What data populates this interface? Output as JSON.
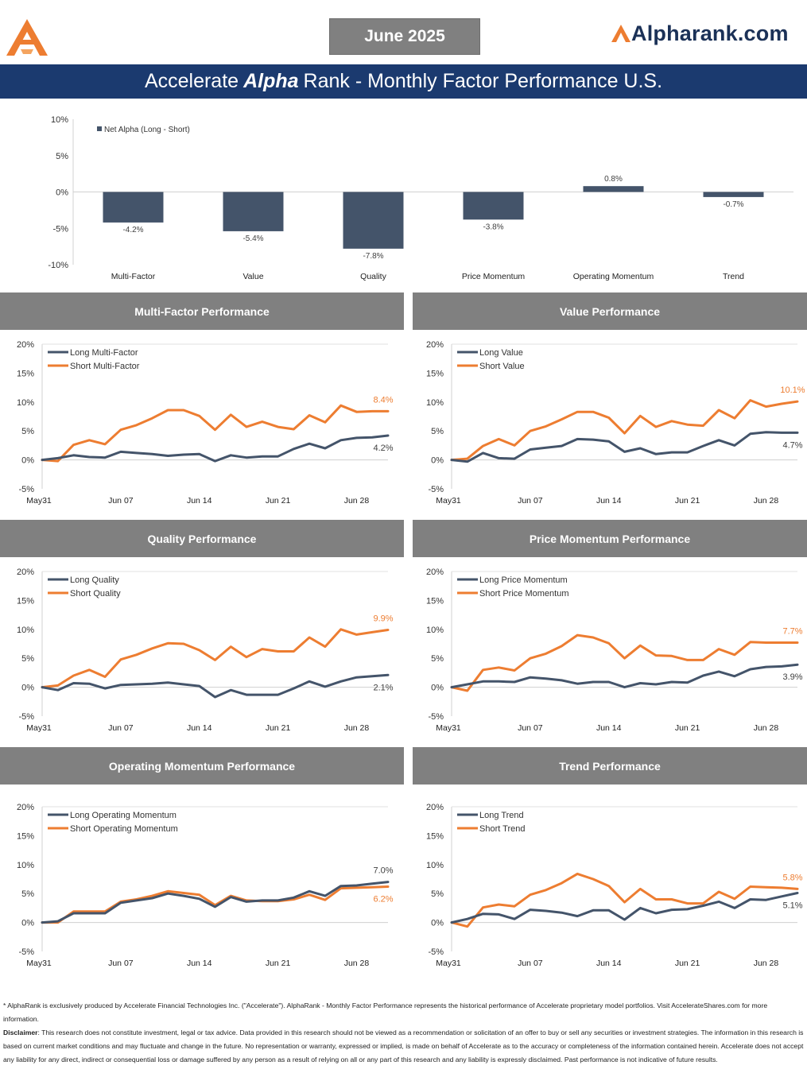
{
  "header": {
    "date": "June 2025",
    "brand": "Alpharank.com",
    "title_pre": "Accelerate",
    "title_alpha": "Alpha",
    "title_post": "Rank - Monthly Factor Performance U.S."
  },
  "colors": {
    "navy": "#44546a",
    "orange": "#ed7d31",
    "panel_gray": "#808080",
    "title_blue": "#1b3a6f"
  },
  "net_alpha": {
    "chart_data": {
      "type": "bar",
      "categories": [
        "Multi-Factor",
        "Value",
        "Quality",
        "Price Momentum",
        "Operating Momentum",
        "Trend"
      ],
      "series": [
        {
          "name": "Net Alpha (Long - Short)",
          "values": [
            -4.2,
            -5.4,
            -7.8,
            -3.8,
            0.8,
            -0.7
          ]
        }
      ],
      "value_labels": [
        "-4.2%",
        "-5.4%",
        "-7.8%",
        "-3.8%",
        "0.8%",
        "-0.7%"
      ],
      "yticks": [
        "10%",
        "5%",
        "0%",
        "-5%",
        "-10%"
      ],
      "ylim": [
        -10,
        10
      ],
      "legend": "top-left"
    }
  },
  "panels": [
    {
      "title": "Multi-Factor Performance",
      "chart_data": {
        "type": "line",
        "xticks": [
          "May31",
          "Jun 07",
          "Jun 14",
          "Jun 21",
          "Jun 28"
        ],
        "yticks": [
          "20%",
          "15%",
          "10%",
          "5%",
          "0%",
          "-5%"
        ],
        "ylim": [
          -5,
          20
        ],
        "series": [
          {
            "name": "Long Multi-Factor",
            "color": "#44546a",
            "end_label": "4.2%",
            "values": [
              0,
              0.3,
              0.8,
              0.5,
              0.4,
              1.4,
              1.2,
              1.0,
              0.7,
              0.9,
              1.0,
              -0.2,
              0.8,
              0.4,
              0.6,
              0.6,
              1.9,
              2.8,
              2.0,
              3.4,
              3.8,
              3.9,
              4.2
            ]
          },
          {
            "name": "Short Multi-Factor",
            "color": "#ed7d31",
            "end_label": "8.4%",
            "values": [
              0,
              -0.2,
              2.6,
              3.4,
              2.7,
              5.2,
              6.0,
              7.2,
              8.6,
              8.6,
              7.6,
              5.2,
              7.8,
              5.7,
              6.6,
              5.7,
              5.3,
              7.7,
              6.5,
              9.4,
              8.3,
              8.4,
              8.4
            ]
          }
        ]
      }
    },
    {
      "title": "Value Performance",
      "chart_data": {
        "type": "line",
        "xticks": [
          "May31",
          "Jun 07",
          "Jun 14",
          "Jun 21",
          "Jun 28"
        ],
        "yticks": [
          "20%",
          "15%",
          "10%",
          "5%",
          "0%",
          "-5%"
        ],
        "ylim": [
          -5,
          20
        ],
        "series": [
          {
            "name": "Long Value",
            "color": "#44546a",
            "end_label": "4.7%",
            "values": [
              0,
              -0.3,
              1.2,
              0.3,
              0.2,
              1.8,
              2.1,
              2.4,
              3.6,
              3.5,
              3.2,
              1.4,
              2.0,
              1.0,
              1.3,
              1.3,
              2.4,
              3.4,
              2.5,
              4.5,
              4.8,
              4.7,
              4.7
            ]
          },
          {
            "name": "Short Value",
            "color": "#ed7d31",
            "end_label": "10.1%",
            "values": [
              0,
              0.2,
              2.4,
              3.6,
              2.5,
              5.0,
              5.8,
              7.0,
              8.3,
              8.3,
              7.3,
              4.6,
              7.6,
              5.7,
              6.7,
              6.1,
              5.9,
              8.6,
              7.2,
              10.3,
              9.2,
              9.7,
              10.1
            ]
          }
        ]
      }
    },
    {
      "title": "Quality Performance",
      "chart_data": {
        "type": "line",
        "xticks": [
          "May31",
          "Jun 07",
          "Jun 14",
          "Jun 21",
          "Jun 28"
        ],
        "yticks": [
          "20%",
          "15%",
          "10%",
          "5%",
          "0%",
          "-5%"
        ],
        "ylim": [
          -5,
          20
        ],
        "series": [
          {
            "name": "Long Quality",
            "color": "#44546a",
            "end_label": "2.1%",
            "values": [
              0,
              -0.5,
              0.7,
              0.6,
              -0.2,
              0.4,
              0.5,
              0.6,
              0.8,
              0.5,
              0.2,
              -1.7,
              -0.5,
              -1.3,
              -1.3,
              -1.3,
              -0.2,
              1.0,
              0.1,
              1.0,
              1.7,
              1.9,
              2.1
            ]
          },
          {
            "name": "Short Quality",
            "color": "#ed7d31",
            "end_label": "9.9%",
            "values": [
              0,
              0.3,
              2.0,
              3.0,
              1.8,
              4.8,
              5.6,
              6.7,
              7.6,
              7.5,
              6.4,
              4.7,
              7.0,
              5.2,
              6.6,
              6.2,
              6.2,
              8.6,
              7.0,
              10.0,
              9.1,
              9.5,
              9.9
            ]
          }
        ]
      }
    },
    {
      "title": "Price Momentum Performance",
      "chart_data": {
        "type": "line",
        "xticks": [
          "May31",
          "Jun 07",
          "Jun 14",
          "Jun 21",
          "Jun 28"
        ],
        "yticks": [
          "20%",
          "15%",
          "10%",
          "5%",
          "0%",
          "-5%"
        ],
        "ylim": [
          -5,
          20
        ],
        "series": [
          {
            "name": "Long Price Momentum",
            "color": "#44546a",
            "end_label": "3.9%",
            "values": [
              0,
              0.5,
              1.0,
              1.0,
              0.9,
              1.7,
              1.5,
              1.2,
              0.6,
              0.9,
              0.9,
              0.0,
              0.7,
              0.5,
              0.9,
              0.8,
              2.0,
              2.7,
              1.9,
              3.1,
              3.5,
              3.6,
              3.9
            ]
          },
          {
            "name": "Short Price Momentum",
            "color": "#ed7d31",
            "end_label": "7.7%",
            "values": [
              0,
              -0.6,
              3.0,
              3.4,
              2.9,
              5.0,
              5.8,
              7.1,
              9.0,
              8.6,
              7.6,
              5.0,
              7.2,
              5.5,
              5.4,
              4.7,
              4.7,
              6.6,
              5.6,
              7.8,
              7.7,
              7.7,
              7.7
            ]
          }
        ]
      }
    },
    {
      "title": "Operating Momentum Performance",
      "chart_data": {
        "type": "line",
        "xticks": [
          "May31",
          "Jun 07",
          "Jun 14",
          "Jun 21",
          "Jun 28"
        ],
        "yticks": [
          "20%",
          "15%",
          "10%",
          "5%",
          "0%",
          "-5%"
        ],
        "ylim": [
          -5,
          20
        ],
        "series": [
          {
            "name": "Long Operating Momentum",
            "color": "#44546a",
            "end_label": "7.0%",
            "values": [
              0,
              0.2,
              1.6,
              1.6,
              1.6,
              3.4,
              3.8,
              4.2,
              5.0,
              4.6,
              4.1,
              2.7,
              4.4,
              3.6,
              3.8,
              3.8,
              4.3,
              5.4,
              4.6,
              6.3,
              6.4,
              6.7,
              7.0
            ]
          },
          {
            "name": "Short Operating Momentum",
            "color": "#ed7d31",
            "end_label": "6.2%",
            "values": [
              0,
              0.0,
              1.9,
              1.9,
              1.9,
              3.6,
              4.0,
              4.6,
              5.4,
              5.1,
              4.8,
              3.0,
              4.6,
              3.8,
              3.7,
              3.7,
              4.0,
              4.8,
              3.9,
              5.9,
              6.0,
              6.1,
              6.2
            ]
          }
        ]
      }
    },
    {
      "title": "Trend Performance",
      "chart_data": {
        "type": "line",
        "xticks": [
          "May31",
          "Jun 07",
          "Jun 14",
          "Jun 21",
          "Jun 28"
        ],
        "yticks": [
          "20%",
          "15%",
          "10%",
          "5%",
          "0%",
          "-5%"
        ],
        "ylim": [
          -5,
          20
        ],
        "series": [
          {
            "name": "Long Trend",
            "color": "#44546a",
            "end_label": "5.1%",
            "values": [
              0,
              0.6,
              1.5,
              1.4,
              0.6,
              2.2,
              2.0,
              1.7,
              1.1,
              2.1,
              2.1,
              0.5,
              2.5,
              1.6,
              2.2,
              2.3,
              2.9,
              3.6,
              2.5,
              4.0,
              3.9,
              4.5,
              5.1
            ]
          },
          {
            "name": "Short Trend",
            "color": "#ed7d31",
            "end_label": "5.8%",
            "values": [
              0,
              -0.7,
              2.6,
              3.1,
              2.8,
              4.8,
              5.6,
              6.8,
              8.4,
              7.5,
              6.3,
              3.5,
              5.8,
              4.0,
              4.0,
              3.3,
              3.3,
              5.3,
              4.1,
              6.2,
              6.1,
              6.0,
              5.8
            ]
          }
        ]
      }
    }
  ],
  "footer": {
    "line1": "* AlphaRank is exclusively produced by Accelerate Financial Technologies Inc. (\"Accelerate\"). AlphaRank - Monthly Factor Performance represents the historical performance of Accelerate proprietary model portfolios. Visit AccelerateShares.com for more information.",
    "disclaimer_label": "Disclaimer",
    "disclaimer_text": ": This research does not constitute investment, legal or tax advice. Data provided in this research should not be viewed as a recommendation or solicitation of an offer to buy or sell any securities or investment strategies. The information in this research is based on current market conditions and may fluctuate and change in the future. No representation or warranty, expressed or implied, is made on behalf of Accelerate as to the accuracy or completeness of the information contained herein. Accelerate does not accept any liability for any direct, indirect or consequential loss or damage suffered by any person as a result of relying on all or any part of this research and any liability is expressly disclaimed. Past performance is not indicative of future results."
  }
}
